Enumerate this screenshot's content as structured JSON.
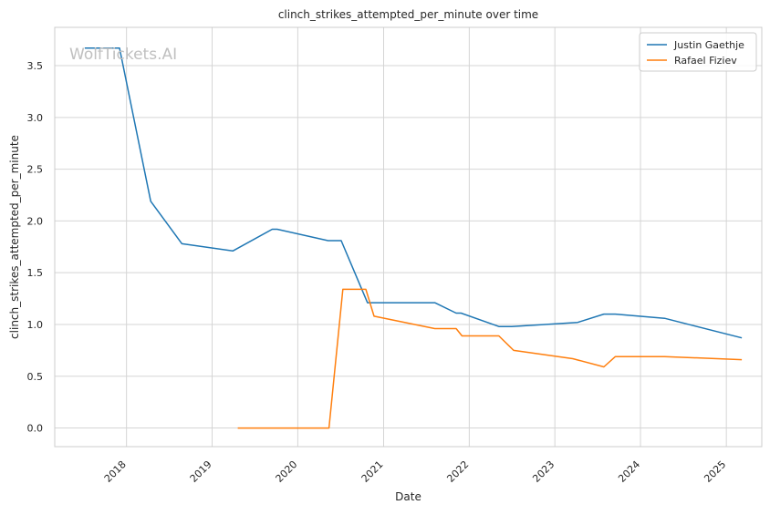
{
  "chart_data": {
    "type": "line",
    "title": "clinch_strikes_attempted_per_minute over time",
    "xlabel": "Date",
    "ylabel": "clinch_strikes_attempted_per_minute",
    "watermark": "WolfTickets.AI",
    "xlim": [
      "2017-03-01",
      "2025-06-01"
    ],
    "ylim": [
      -0.18,
      3.87
    ],
    "x_ticks": [
      {
        "date": "2018-01-01",
        "label": "2018"
      },
      {
        "date": "2019-01-01",
        "label": "2019"
      },
      {
        "date": "2020-01-01",
        "label": "2020"
      },
      {
        "date": "2021-01-01",
        "label": "2021"
      },
      {
        "date": "2022-01-01",
        "label": "2022"
      },
      {
        "date": "2023-01-01",
        "label": "2023"
      },
      {
        "date": "2024-01-01",
        "label": "2024"
      },
      {
        "date": "2025-01-01",
        "label": "2025"
      }
    ],
    "y_ticks": [
      {
        "value": 0.0,
        "label": "0.0"
      },
      {
        "value": 0.5,
        "label": "0.5"
      },
      {
        "value": 1.0,
        "label": "1.0"
      },
      {
        "value": 1.5,
        "label": "1.5"
      },
      {
        "value": 2.0,
        "label": "2.0"
      },
      {
        "value": 2.5,
        "label": "2.5"
      },
      {
        "value": 3.0,
        "label": "3.0"
      },
      {
        "value": 3.5,
        "label": "3.5"
      }
    ],
    "grid": true,
    "legend_position": "top-right",
    "series": [
      {
        "name": "Justin Gaethje",
        "color": "#1f77b4",
        "points": [
          [
            "2017-07-07",
            3.67
          ],
          [
            "2017-12-02",
            3.67
          ],
          [
            "2018-04-14",
            2.19
          ],
          [
            "2018-08-25",
            1.78
          ],
          [
            "2019-03-30",
            1.71
          ],
          [
            "2019-09-14",
            1.92
          ],
          [
            "2019-10-05",
            1.92
          ],
          [
            "2020-05-09",
            1.81
          ],
          [
            "2020-07-04",
            1.81
          ],
          [
            "2020-10-24",
            1.21
          ],
          [
            "2021-08-07",
            1.21
          ],
          [
            "2021-11-06",
            1.11
          ],
          [
            "2021-11-27",
            1.11
          ],
          [
            "2022-05-07",
            0.98
          ],
          [
            "2022-07-01",
            0.98
          ],
          [
            "2023-04-08",
            1.02
          ],
          [
            "2023-07-29",
            1.1
          ],
          [
            "2023-09-16",
            1.1
          ],
          [
            "2024-04-13",
            1.06
          ],
          [
            "2025-03-08",
            0.87
          ]
        ]
      },
      {
        "name": "Rafael Fiziev",
        "color": "#ff7f0e",
        "points": [
          [
            "2019-04-20",
            0.0
          ],
          [
            "2020-05-13",
            0.0
          ],
          [
            "2020-07-11",
            1.34
          ],
          [
            "2020-10-17",
            1.34
          ],
          [
            "2020-11-21",
            1.08
          ],
          [
            "2021-08-07",
            0.96
          ],
          [
            "2021-11-06",
            0.96
          ],
          [
            "2021-12-01",
            0.89
          ],
          [
            "2022-05-07",
            0.89
          ],
          [
            "2022-07-09",
            0.75
          ],
          [
            "2023-03-18",
            0.67
          ],
          [
            "2023-07-29",
            0.59
          ],
          [
            "2023-09-16",
            0.69
          ],
          [
            "2024-04-13",
            0.69
          ],
          [
            "2025-03-08",
            0.66
          ]
        ]
      }
    ]
  }
}
